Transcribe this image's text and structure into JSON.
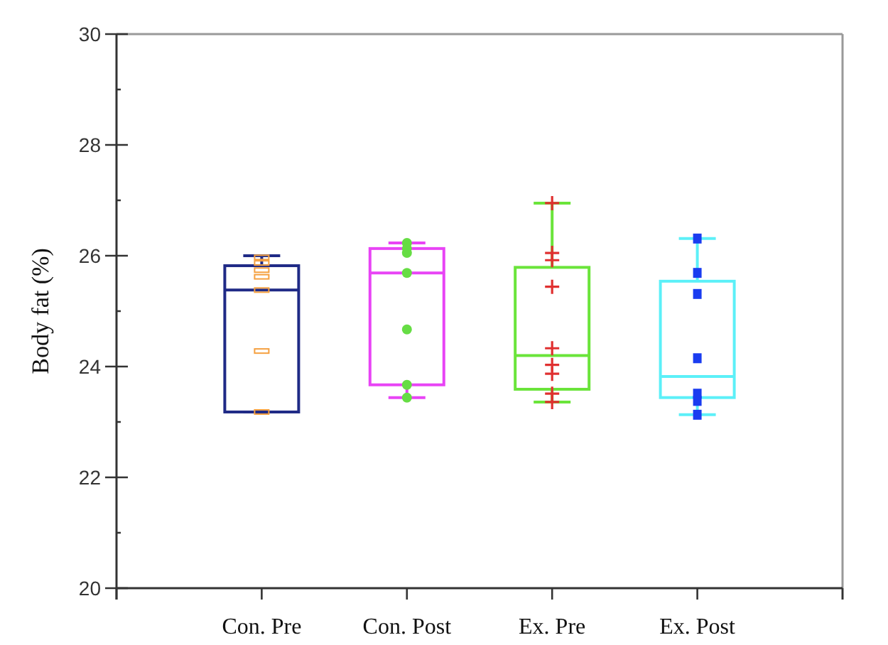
{
  "chart_data": {
    "type": "box",
    "ylabel": "Body fat (%)",
    "categories": [
      "Con. Pre",
      "Con. Post",
      "Ex. Pre",
      "Ex. Post"
    ],
    "colors": [
      "#1f2a86",
      "#e844f5",
      "#6ae43a",
      "#5cf0f8"
    ],
    "boxes": [
      {
        "low": 23.18,
        "q1": 23.18,
        "median": 25.38,
        "q3": 25.82,
        "high": 26.0
      },
      {
        "low": 23.44,
        "q1": 23.67,
        "median": 25.69,
        "q3": 26.13,
        "high": 26.23
      },
      {
        "low": 23.36,
        "q1": 23.59,
        "median": 24.2,
        "q3": 25.79,
        "high": 26.95
      },
      {
        "low": 23.13,
        "q1": 23.44,
        "median": 23.82,
        "q3": 25.54,
        "high": 26.31
      }
    ],
    "series": [
      {
        "type": "scatter",
        "color": "#f5a040",
        "x": [
          "Con. Pre",
          "Con. Pre",
          "Con. Pre",
          "Con. Pre",
          "Con. Pre",
          "Con. Pre",
          "Con. Pre"
        ],
        "values": [
          25.97,
          25.87,
          25.74,
          25.62,
          25.38,
          24.28,
          23.18
        ]
      },
      {
        "type": "scatter",
        "marker": "circle",
        "color": "#66dd44",
        "x": [
          "Con. Post",
          "Con. Post",
          "Con. Post",
          "Con. Post",
          "Con. Post",
          "Con. Post",
          "Con. Post"
        ],
        "values": [
          26.23,
          26.13,
          26.05,
          25.69,
          24.67,
          23.67,
          23.44
        ]
      },
      {
        "type": "scatter",
        "marker": "cross",
        "color": "#e03030",
        "x": [
          "Ex. Pre",
          "Ex. Pre",
          "Ex. Pre",
          "Ex. Pre",
          "Ex. Pre",
          "Ex. Pre",
          "Ex. Pre",
          "Ex. Pre",
          "Ex. Pre"
        ],
        "values": [
          26.95,
          26.05,
          25.92,
          25.44,
          24.33,
          24.03,
          23.87,
          23.51,
          23.36
        ]
      },
      {
        "type": "scatter",
        "marker": "square",
        "color": "#1a3cf0",
        "x": [
          "Ex. Post",
          "Ex. Post",
          "Ex. Post",
          "Ex. Post",
          "Ex. Post",
          "Ex. Post",
          "Ex. Post"
        ],
        "values": [
          26.31,
          25.69,
          25.31,
          24.15,
          23.51,
          23.38,
          23.13
        ]
      }
    ],
    "ylim": [
      20,
      30
    ],
    "yticks": [
      20,
      {
        "value": 21,
        "label": null
      },
      22,
      {
        "value": 23,
        "label": null
      },
      24,
      {
        "value": 25,
        "label": null
      },
      26,
      {
        "value": 27,
        "label": null
      },
      28,
      {
        "value": 29,
        "label": null
      },
      30
    ],
    "grid": false
  }
}
